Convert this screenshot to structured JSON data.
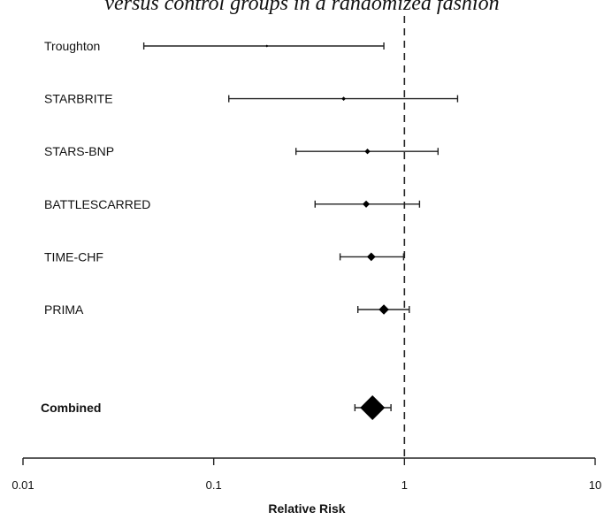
{
  "subtitle": "versus control groups in a randomized fashion",
  "chart_data": {
    "type": "forest",
    "xlabel": "Relative Risk",
    "xscale": "log",
    "xlim": [
      0.01,
      10
    ],
    "xticks": [
      0.01,
      0.1,
      1,
      10
    ],
    "xtick_labels": [
      "0.01",
      "0.1",
      "1",
      "10"
    ],
    "reference_line": 1,
    "studies": [
      {
        "label": "Troughton",
        "estimate": 0.19,
        "lower": 0.043,
        "upper": 0.78
      },
      {
        "label": "STARBRITE",
        "estimate": 0.48,
        "lower": 0.12,
        "upper": 1.9
      },
      {
        "label": "STARS-BNP",
        "estimate": 0.64,
        "lower": 0.27,
        "upper": 1.5
      },
      {
        "label": "BATTLESCARRED",
        "estimate": 0.63,
        "lower": 0.34,
        "upper": 1.2
      },
      {
        "label": "TIME-CHF",
        "estimate": 0.67,
        "lower": 0.46,
        "upper": 0.99
      },
      {
        "label": "PRIMA",
        "estimate": 0.78,
        "lower": 0.57,
        "upper": 1.06
      }
    ],
    "combined": {
      "label": "Combined",
      "estimate": 0.68,
      "lower": 0.55,
      "upper": 0.85
    }
  }
}
